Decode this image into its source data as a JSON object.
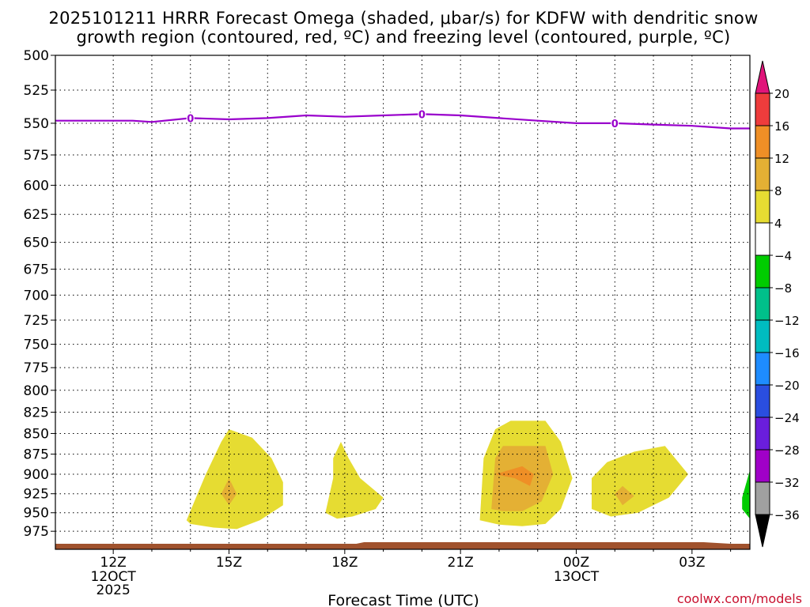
{
  "chart_data": {
    "type": "contour",
    "title_lines": [
      "2025101211 HRRR Forecast Omega (shaded, μbar/s) for KDFW with dendritic snow",
      "growth region (contoured, red, ºC) and freezing level (contoured, purple, ºC)"
    ],
    "xlabel": "Forecast Time (UTC)",
    "ylabel": "",
    "x_range_hours": [
      -1.5,
      16.5
    ],
    "y_levels": [
      "500",
      "525",
      "550",
      "575",
      "600",
      "625",
      "650",
      "675",
      "700",
      "725",
      "750",
      "775",
      "800",
      "825",
      "850",
      "875",
      "900",
      "925",
      "950",
      "975"
    ],
    "ylim": [
      1000,
      500
    ],
    "x_ticks": [
      {
        "h": 0,
        "label": "12Z",
        "sub": [
          "12OCT",
          "2025"
        ]
      },
      {
        "h": 3,
        "label": "15Z",
        "sub": []
      },
      {
        "h": 6,
        "label": "18Z",
        "sub": []
      },
      {
        "h": 9,
        "label": "21Z",
        "sub": []
      },
      {
        "h": 12,
        "label": "00Z",
        "sub": [
          "13OCT"
        ]
      },
      {
        "h": 15,
        "label": "03Z",
        "sub": []
      }
    ],
    "freezing_level": {
      "label": "0",
      "color": "#9900cc",
      "points": [
        [
          -1.5,
          548
        ],
        [
          0.5,
          548
        ],
        [
          1.0,
          549
        ],
        [
          2.0,
          546
        ],
        [
          3.0,
          547
        ],
        [
          4.0,
          546
        ],
        [
          5.0,
          544
        ],
        [
          6.0,
          545
        ],
        [
          7.0,
          544
        ],
        [
          8.0,
          543
        ],
        [
          9.0,
          544
        ],
        [
          10.0,
          546
        ],
        [
          11.0,
          548
        ],
        [
          12.0,
          550
        ],
        [
          13.0,
          550
        ],
        [
          14.0,
          551
        ],
        [
          15.0,
          552
        ],
        [
          16.0,
          554
        ],
        [
          16.5,
          554
        ]
      ],
      "label_positions": [
        [
          2.0,
          546
        ],
        [
          8.0,
          543
        ],
        [
          13.0,
          550
        ]
      ]
    },
    "omega_regions": [
      {
        "level": "4 to 8",
        "color": "#e6dc32",
        "points": [
          [
            1.9,
            960
          ],
          [
            2.4,
            900
          ],
          [
            2.8,
            860
          ],
          [
            3.0,
            845
          ],
          [
            3.6,
            855
          ],
          [
            4.1,
            880
          ],
          [
            4.4,
            910
          ],
          [
            4.4,
            940
          ],
          [
            3.8,
            960
          ],
          [
            3.2,
            972
          ],
          [
            2.6,
            970
          ],
          [
            2.0,
            965
          ]
        ]
      },
      {
        "level": "8 to 12",
        "color": "#e4b034",
        "points": [
          [
            2.8,
            925
          ],
          [
            3.0,
            905
          ],
          [
            3.2,
            925
          ],
          [
            3.0,
            940
          ]
        ]
      },
      {
        "level": "4 to 8",
        "color": "#e6dc32",
        "points": [
          [
            5.5,
            950
          ],
          [
            5.7,
            905
          ],
          [
            5.7,
            880
          ],
          [
            5.9,
            860
          ],
          [
            6.1,
            880
          ],
          [
            6.4,
            905
          ],
          [
            7.0,
            930
          ],
          [
            6.8,
            945
          ],
          [
            6.2,
            955
          ],
          [
            5.8,
            958
          ]
        ]
      },
      {
        "level": "4 to 8",
        "color": "#e6dc32",
        "points": [
          [
            9.5,
            960
          ],
          [
            9.6,
            880
          ],
          [
            9.9,
            845
          ],
          [
            10.3,
            835
          ],
          [
            11.2,
            835
          ],
          [
            11.6,
            860
          ],
          [
            11.9,
            905
          ],
          [
            11.6,
            945
          ],
          [
            11.2,
            965
          ],
          [
            10.6,
            968
          ],
          [
            10.0,
            966
          ]
        ]
      },
      {
        "level": "8 to 12",
        "color": "#e4b034",
        "points": [
          [
            9.8,
            945
          ],
          [
            9.9,
            880
          ],
          [
            10.1,
            865
          ],
          [
            11.2,
            865
          ],
          [
            11.4,
            900
          ],
          [
            11.1,
            935
          ],
          [
            10.6,
            948
          ],
          [
            10.1,
            948
          ]
        ]
      },
      {
        "level": "12 to 16",
        "color": "#ef8f26",
        "points": [
          [
            9.9,
            900
          ],
          [
            10.6,
            890
          ],
          [
            10.9,
            900
          ],
          [
            10.8,
            915
          ],
          [
            10.4,
            905
          ]
        ]
      },
      {
        "level": "4 to 8",
        "color": "#e6dc32",
        "points": [
          [
            12.4,
            945
          ],
          [
            12.4,
            905
          ],
          [
            12.8,
            885
          ],
          [
            13.5,
            872
          ],
          [
            14.3,
            865
          ],
          [
            14.9,
            900
          ],
          [
            14.4,
            930
          ],
          [
            13.6,
            950
          ],
          [
            12.9,
            955
          ]
        ]
      },
      {
        "level": "8 to 12",
        "color": "#e4b034",
        "points": [
          [
            13.0,
            925
          ],
          [
            13.2,
            915
          ],
          [
            13.5,
            928
          ],
          [
            13.2,
            940
          ]
        ]
      },
      {
        "level": "-8 to -4",
        "color": "#00cc00",
        "points": [
          [
            16.3,
            930
          ],
          [
            16.5,
            895
          ],
          [
            16.5,
            958
          ],
          [
            16.3,
            945
          ]
        ]
      }
    ],
    "terrain": {
      "color": "#a0522d",
      "label": "ground"
    },
    "colorbar": {
      "ticks": [
        "20",
        "16",
        "12",
        "8",
        "4",
        "−4",
        "−8",
        "−12",
        "−16",
        "−20",
        "−24",
        "−28",
        "−32",
        "−36"
      ],
      "bins": [
        {
          "range": "above 20",
          "color": "#e0147a"
        },
        {
          "range": "16 to 20",
          "color": "#ee3c3c"
        },
        {
          "range": "12 to 16",
          "color": "#ef8f26"
        },
        {
          "range": "8 to 12",
          "color": "#e4b034"
        },
        {
          "range": "4 to 8",
          "color": "#e6dc32"
        },
        {
          "range": "-4 to 4",
          "color": "#ffffff"
        },
        {
          "range": "-8 to -4",
          "color": "#00cc00"
        },
        {
          "range": "-12 to -8",
          "color": "#00c08a"
        },
        {
          "range": "-16 to -12",
          "color": "#00bcc0"
        },
        {
          "range": "-20 to -16",
          "color": "#1e8cff"
        },
        {
          "range": "-24 to -20",
          "color": "#2a4ee0"
        },
        {
          "range": "-28 to -24",
          "color": "#6a1edc"
        },
        {
          "range": "-32 to -28",
          "color": "#a000c8"
        },
        {
          "range": "-36 to -32",
          "color": "#a0a0a0"
        },
        {
          "range": "below -36",
          "color": "#000000"
        }
      ]
    },
    "credit": "coolwx.com/models"
  }
}
